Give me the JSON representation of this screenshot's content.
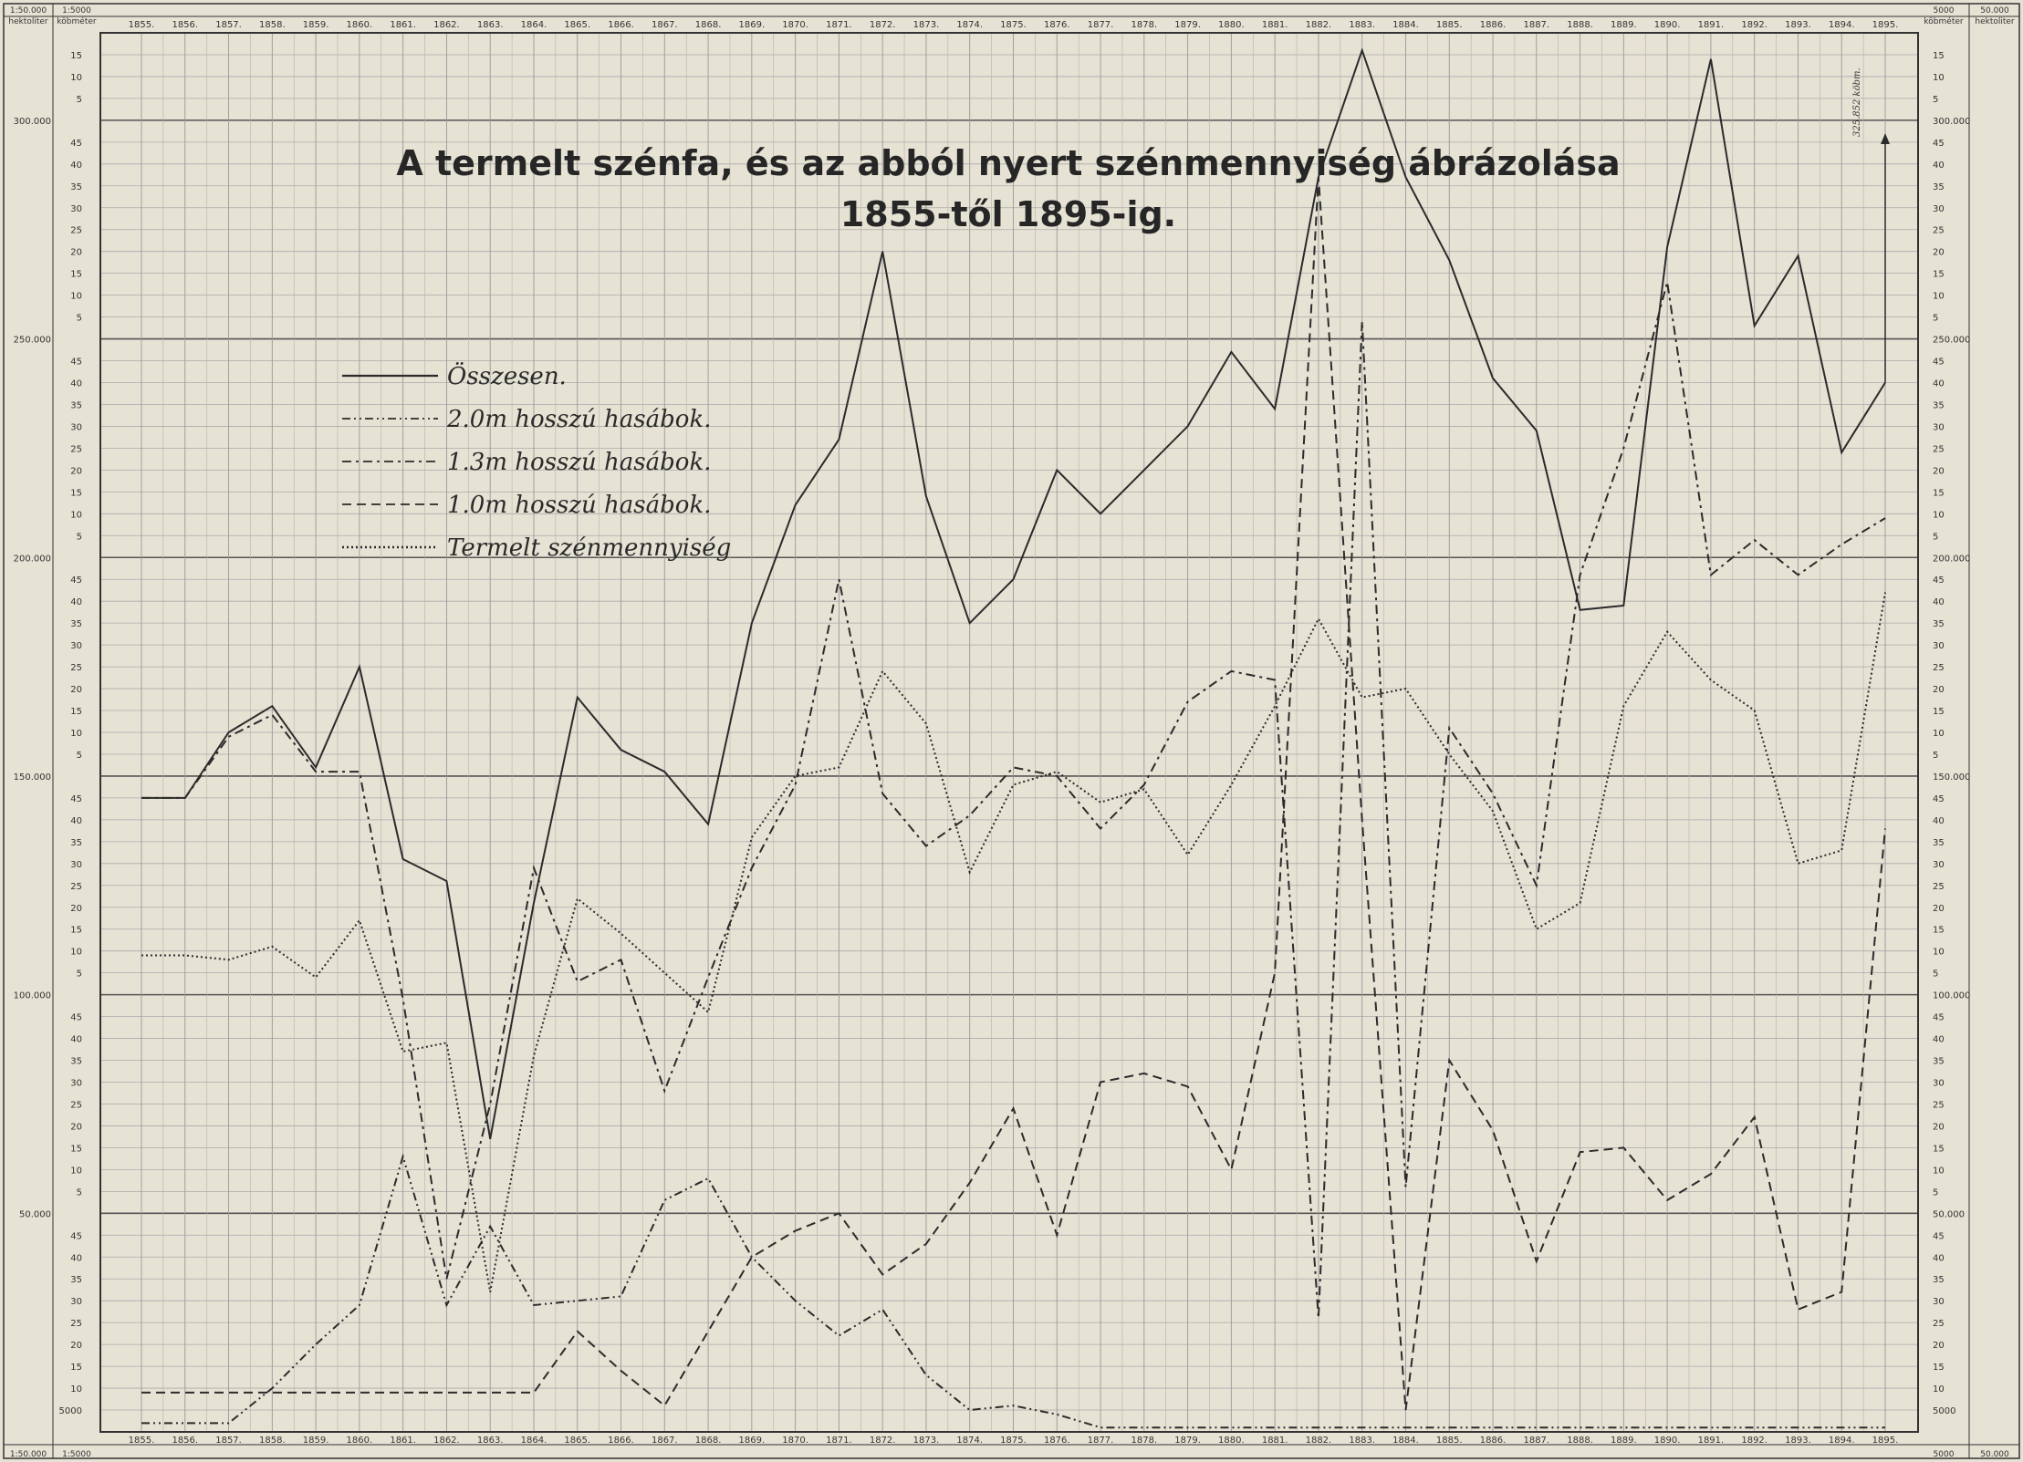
{
  "chart_data": {
    "type": "line",
    "title": "A termelt szénfa, és az abból nyert szénmennyiség ábrázolása",
    "subtitle": "1855-től 1895-ig.",
    "x": [
      "1855.",
      "1856.",
      "1857.",
      "1858.",
      "1859.",
      "1860.",
      "1861.",
      "1862.",
      "1863.",
      "1864.",
      "1865.",
      "1866.",
      "1867.",
      "1868.",
      "1869.",
      "1870.",
      "1871.",
      "1872.",
      "1873.",
      "1874.",
      "1875.",
      "1876.",
      "1877.",
      "1878.",
      "1879.",
      "1880.",
      "1881.",
      "1882.",
      "1883.",
      "1884.",
      "1885.",
      "1886.",
      "1887.",
      "1888.",
      "1889.",
      "1890.",
      "1891.",
      "1892.",
      "1893.",
      "1894.",
      "1895."
    ],
    "y_left_units": [
      "hektoliter",
      "köbméter"
    ],
    "y_right_units": [
      "köbméter",
      "hektoliter"
    ],
    "ylim": [
      0,
      320000
    ],
    "y_ticks_major": [
      "50.000",
      "100.000",
      "150.000",
      "200.000",
      "250.000",
      "300.000"
    ],
    "y_tick_5000_label": "5000",
    "header_left": [
      "1:50.000 hektoliter",
      "1:5000 köbméter"
    ],
    "header_right": [
      "5000 köbméter",
      "50.000 hektoliter"
    ],
    "series": [
      {
        "name": "Összesen.",
        "style": "solid",
        "values": [
          145000,
          145000,
          160000,
          166000,
          152000,
          175000,
          131000,
          126000,
          67000,
          121000,
          168000,
          156000,
          151000,
          139000,
          185000,
          212000,
          227000,
          270000,
          214000,
          185000,
          195000,
          220000,
          210000,
          220000,
          230000,
          247000,
          234000,
          287000,
          316000,
          287000,
          268000,
          241000,
          229000,
          188000,
          189000,
          271000,
          314000,
          253000,
          269000,
          224000,
          240000
        ]
      },
      {
        "name": "2.0m hosszú hasábok.",
        "style": "dash-dot-dot",
        "values": [
          2000,
          2000,
          2000,
          10000,
          20000,
          29000,
          63000,
          29000,
          47000,
          29000,
          30000,
          31000,
          53000,
          58000,
          40000,
          30000,
          22000,
          28000,
          13000,
          5000,
          6000,
          4000,
          1000,
          1000,
          1000,
          1000,
          1000,
          1000,
          1000,
          1000,
          1000,
          1000,
          1000,
          1000,
          1000,
          1000,
          1000,
          1000,
          1000,
          1000,
          1000
        ]
      },
      {
        "name": "1.3m hosszú hasábok.",
        "style": "dash-dot",
        "values": [
          145000,
          145000,
          159000,
          164000,
          151000,
          151000,
          99000,
          35000,
          75000,
          129000,
          103000,
          108000,
          78000,
          104000,
          129000,
          148000,
          195000,
          146000,
          134000,
          141000,
          152000,
          150000,
          138000,
          148000,
          167000,
          174000,
          172000,
          26000,
          254000,
          56000,
          161000,
          146000,
          125000,
          196000,
          225000,
          263000,
          196000,
          204000,
          196000,
          203000,
          209000
        ]
      },
      {
        "name": "1.0m hosszú hasábok.",
        "style": "dashed",
        "values": [
          9000,
          9000,
          9000,
          9000,
          9000,
          9000,
          9000,
          9000,
          9000,
          9000,
          23000,
          14000,
          6000,
          23000,
          40000,
          46000,
          50000,
          36000,
          43000,
          57000,
          74000,
          45000,
          80000,
          82000,
          79000,
          60000,
          105000,
          287000,
          140000,
          5000,
          85000,
          69000,
          39000,
          64000,
          65000,
          53000,
          59000,
          72000,
          28000,
          32000,
          138000
        ]
      },
      {
        "name": "Termelt szénmennyiség",
        "style": "dotted",
        "values": [
          109000,
          109000,
          108000,
          111000,
          104000,
          117000,
          87000,
          89000,
          32000,
          86000,
          122000,
          114000,
          105000,
          96000,
          136000,
          150000,
          152000,
          174000,
          162000,
          128000,
          148000,
          151000,
          144000,
          147000,
          132000,
          148000,
          166000,
          186000,
          168000,
          170000,
          155000,
          142000,
          115000,
          121000,
          166000,
          183000,
          172000,
          165000,
          130000,
          133000,
          192000
        ]
      }
    ],
    "annotation": "325.852 köbm."
  }
}
